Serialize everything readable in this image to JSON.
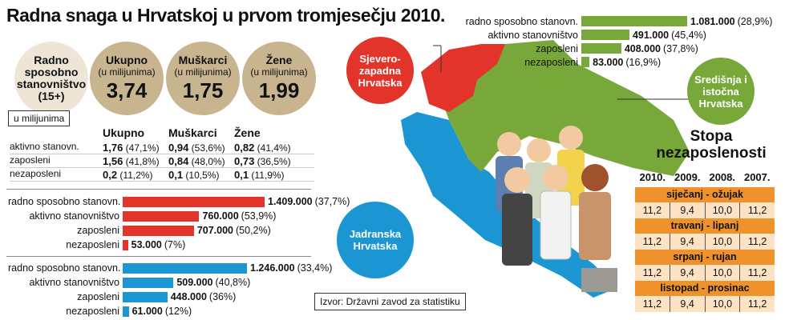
{
  "title": "Radna snaga u Hrvatskoj u prvom tromjesečju 2010.",
  "circles": [
    {
      "label": "Radno sposobno stanovništvo (15+)"
    },
    {
      "label": "Ukupno",
      "sub": "(u milijunima)",
      "value": "3,74"
    },
    {
      "label": "Muškarci",
      "sub": "(u milijunima)",
      "value": "1,75"
    },
    {
      "label": "Žene",
      "sub": "(u milijunima)",
      "value": "1,99"
    }
  ],
  "unit_note": "u milijunima",
  "table": {
    "columns": [
      "Ukupno",
      "Muškarci",
      "Žene"
    ],
    "rows": [
      {
        "label": "aktivno stanovn.",
        "cells": [
          {
            "value": "1,76",
            "share": "(47,1%)"
          },
          {
            "value": "0,94",
            "share": "(53,6%)"
          },
          {
            "value": "0,82",
            "share": "(41,4%)"
          }
        ]
      },
      {
        "label": "zaposleni",
        "cells": [
          {
            "value": "1,56",
            "share": "(41,8%)"
          },
          {
            "value": "0,84",
            "share": "(48,0%)"
          },
          {
            "value": "0,73",
            "share": "(36,5%)"
          }
        ]
      },
      {
        "label": "nezaposleni",
        "cells": [
          {
            "value": "0,2",
            "share": "(11,2%)"
          },
          {
            "value": "0,1",
            "share": "(10,5%)"
          },
          {
            "value": "0,1",
            "share": "(11,9%)"
          }
        ]
      }
    ]
  },
  "regions": [
    {
      "name": "Sjevero-zapadna Hrvatska",
      "color": "#e2342b",
      "labels": [
        "radno sposobno stanovn.",
        "aktivno stanovništvo",
        "zaposleni",
        "nezaposleni"
      ],
      "values": [
        1409000,
        760000,
        707000,
        53000
      ],
      "value_labels": [
        "1.409.000",
        "760.000",
        "707.000",
        "53.000"
      ],
      "shares": [
        "(37,7%)",
        "(53,9%)",
        "(50,2%)",
        "(7%)"
      ]
    },
    {
      "name": "Središnja i istočna Hrvatska",
      "color": "#78a83a",
      "labels": [
        "radno sposobno stanovn.",
        "aktivno stanovništvo",
        "zaposleni",
        "nezaposleni"
      ],
      "values": [
        1081000,
        491000,
        408000,
        83000
      ],
      "value_labels": [
        "1.081.000",
        "491.000",
        "408.000",
        "83.000"
      ],
      "shares": [
        "(28,9%)",
        "(45,4%)",
        "(37,8%)",
        "(16,9%)"
      ]
    },
    {
      "name": "Jadranska Hrvatska",
      "color": "#1b96d3",
      "labels": [
        "radno sposobno stanovn.",
        "aktivno stanovništvo",
        "zaposleni",
        "nezaposleni"
      ],
      "values": [
        1246000,
        509000,
        448000,
        61000
      ],
      "value_labels": [
        "1.246.000",
        "509.000",
        "448.000",
        "61.000"
      ],
      "shares": [
        "(33,4%)",
        "(40,8%)",
        "(36%)",
        "(12%)"
      ]
    }
  ],
  "unemployment": {
    "title": "Stopa nezaposlenosti",
    "years": [
      "2010.",
      "2009.",
      "2008.",
      "2007."
    ],
    "periods": [
      {
        "name": "siječanj - ožujak",
        "values": [
          "11,2",
          "9,4",
          "10,0",
          "11,2"
        ]
      },
      {
        "name": "travanj - lipanj",
        "values": [
          "11,2",
          "9,4",
          "10,0",
          "11,2"
        ]
      },
      {
        "name": "srpanj - rujan",
        "values": [
          "11,2",
          "9,4",
          "10,0",
          "11,2"
        ]
      },
      {
        "name": "listopad - prosinac",
        "values": [
          "11,2",
          "9,4",
          "10,0",
          "11,2"
        ]
      }
    ]
  },
  "source": "Izvor: Državni zavod za statistiku"
}
